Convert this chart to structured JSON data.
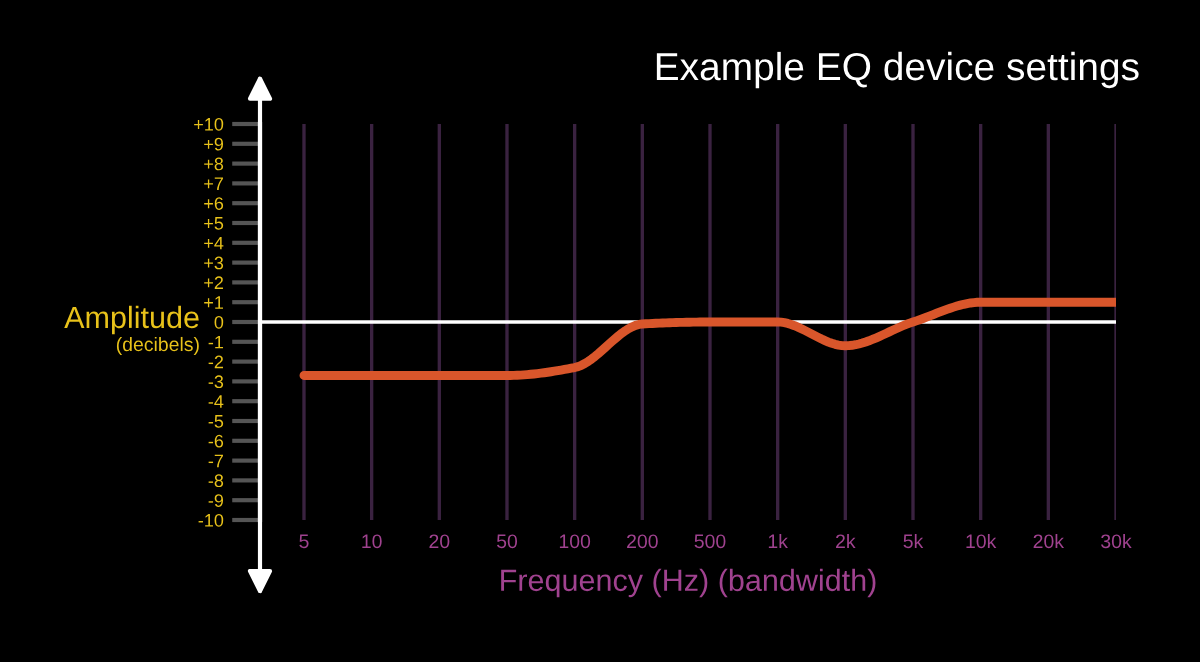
{
  "chart_data": {
    "type": "line",
    "title": "Example EQ device settings",
    "xlabel": "Frequency (Hz) (bandwidth)",
    "ylabel": "Amplitude",
    "annotations": [
      "(decibels)"
    ],
    "categories": [
      "5",
      "10",
      "20",
      "50",
      "100",
      "200",
      "500",
      "1k",
      "2k",
      "5k",
      "10k",
      "20k",
      "30k"
    ],
    "series": [
      {
        "color": "#d9562b",
        "values": [
          -2.7,
          -2.7,
          -2.7,
          -2.7,
          -2.3,
          -0.1,
          0,
          0,
          -1.2,
          0,
          1.0,
          1.0,
          1.0
        ]
      }
    ],
    "ylim": [
      -10,
      10
    ],
    "yticks": [
      {
        "value": 10,
        "label": "+10"
      },
      {
        "value": 9,
        "label": "+9"
      },
      {
        "value": 8,
        "label": "+8"
      },
      {
        "value": 7,
        "label": "+7"
      },
      {
        "value": 6,
        "label": "+6"
      },
      {
        "value": 5,
        "label": "+5"
      },
      {
        "value": 4,
        "label": "+4"
      },
      {
        "value": 3,
        "label": "+3"
      },
      {
        "value": 2,
        "label": "+2"
      },
      {
        "value": 1,
        "label": "+1"
      },
      0,
      -1,
      -2,
      -3,
      -4,
      -5,
      -6,
      -7,
      -8,
      -9,
      -10
    ],
    "ref_lines": [
      {
        "axis": "y",
        "value": 0,
        "color": "#ffffff",
        "line_style": "solid"
      }
    ],
    "grid": "x",
    "legend": false,
    "marker": "none",
    "line_style": "solid"
  }
}
